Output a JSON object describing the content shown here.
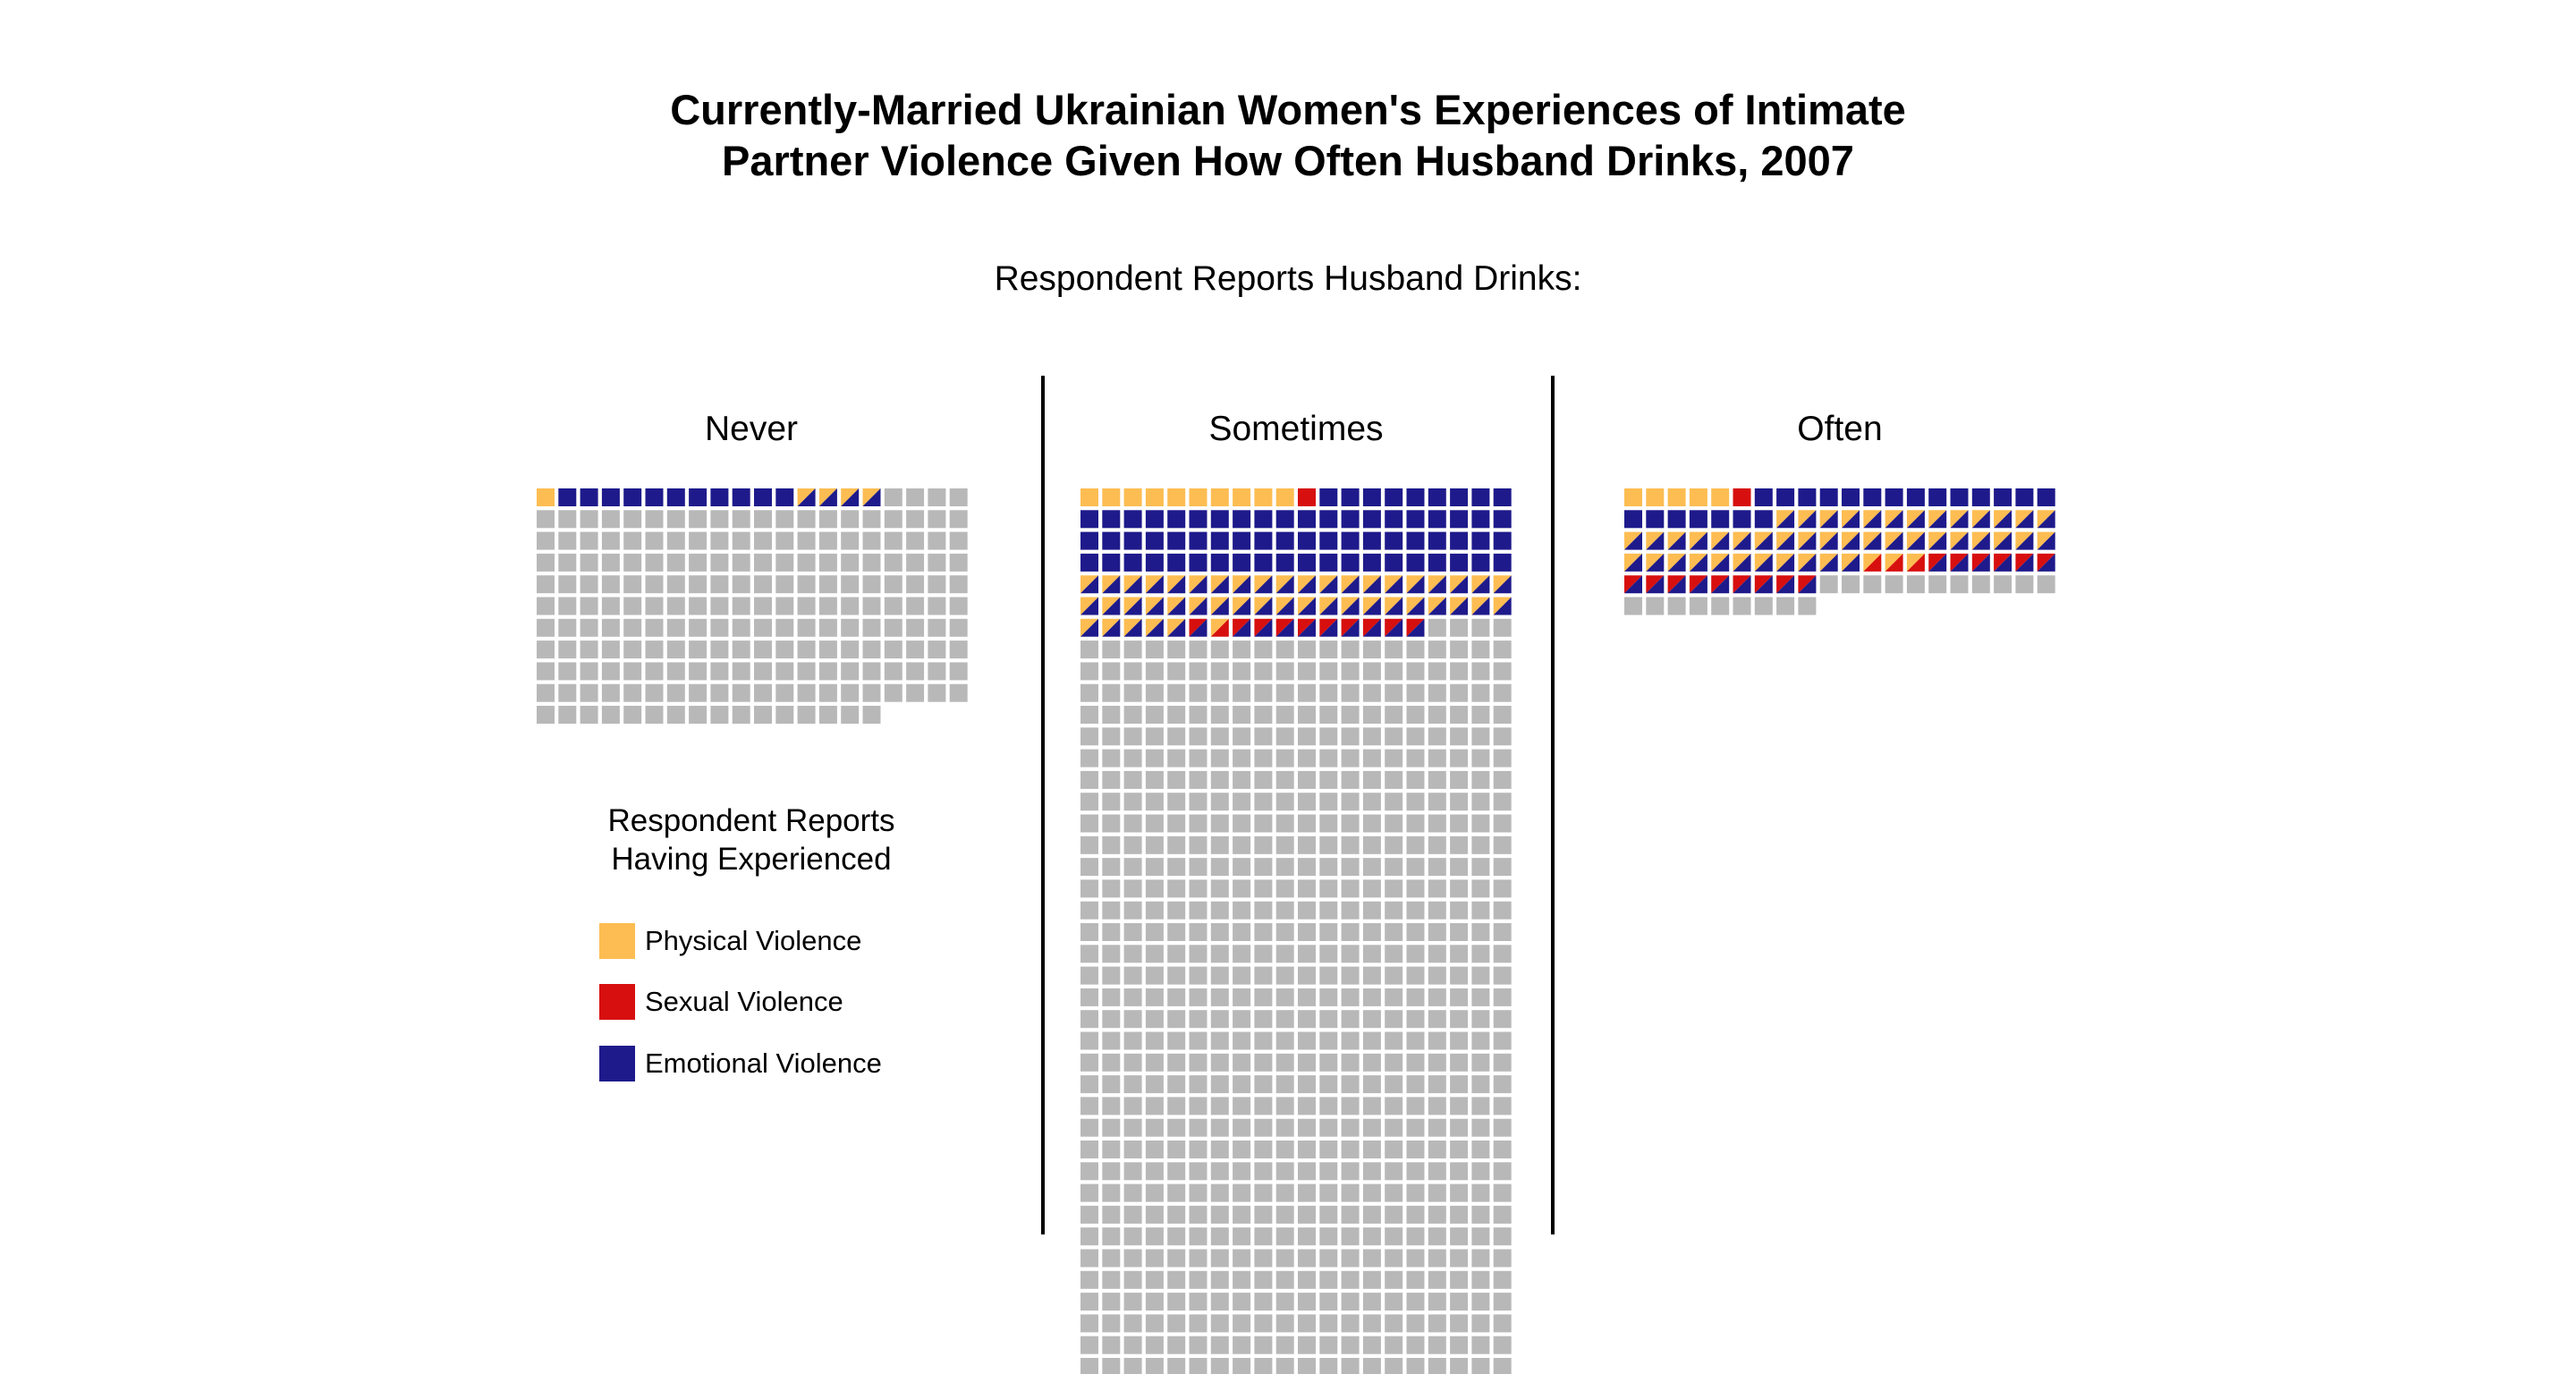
{
  "title_line1": "Currently-Married Ukrainian Women's Experiences of Intimate",
  "title_line2": "Partner Violence Given How Often Husband Drinks, 2007",
  "subtitle": "Respondent Reports Husband Drinks:",
  "legend": {
    "title_line1": "Respondent Reports",
    "title_line2": "Having Experienced",
    "items": [
      {
        "label": "Physical Violence",
        "color": "#fdbd52"
      },
      {
        "label": "Sexual Violence",
        "color": "#d7100f"
      },
      {
        "label": "Emotional Violence",
        "color": "#1e1a8b"
      }
    ]
  },
  "chart_data": {
    "type": "waffle",
    "columns_per_row": 20,
    "colors": {
      "physical": "#fdbd52",
      "sexual": "#d7100f",
      "emotional": "#1e1a8b",
      "none": "#b8b8b8"
    },
    "panels": [
      {
        "name": "Never",
        "segments": [
          {
            "type": "physical",
            "count": 1
          },
          {
            "type": "emotional",
            "count": 11
          },
          {
            "type": "physical+emotional",
            "count": 4
          },
          {
            "type": "none",
            "count": 200
          }
        ]
      },
      {
        "name": "Sometimes",
        "segments": [
          {
            "type": "physical",
            "count": 10
          },
          {
            "type": "sexual",
            "count": 1
          },
          {
            "type": "emotional",
            "count": 69
          },
          {
            "type": "physical+emotional",
            "count": 45
          },
          {
            "type": "sexual+emotional",
            "count": 1
          },
          {
            "type": "physical+sexual",
            "count": 1
          },
          {
            "type": "sexual+emotional",
            "count": 9
          },
          {
            "type": "none",
            "count": 713
          }
        ]
      },
      {
        "name": "Often",
        "segments": [
          {
            "type": "physical",
            "count": 5
          },
          {
            "type": "sexual",
            "count": 1
          },
          {
            "type": "emotional",
            "count": 21
          },
          {
            "type": "physical+emotional",
            "count": 44
          },
          {
            "type": "physical+sexual",
            "count": 3
          },
          {
            "type": "sexual+emotional",
            "count": 15
          },
          {
            "type": "none",
            "count": 20
          }
        ]
      }
    ]
  }
}
